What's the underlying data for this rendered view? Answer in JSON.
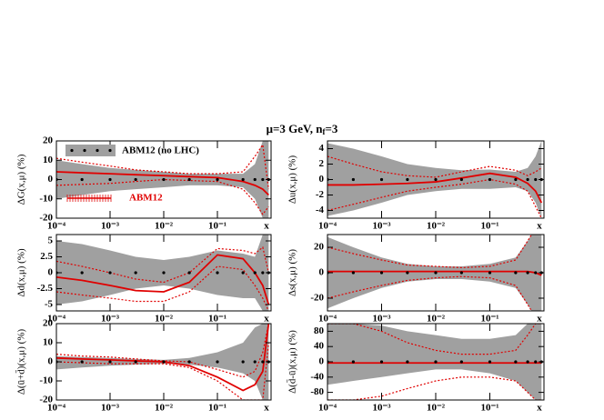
{
  "title": [
    "μ=3 GeV, n",
    "f",
    "=3"
  ],
  "chart_data": [
    {
      "type": "band-line",
      "ylabel": "ΔG(x,μ) (%)",
      "log_x": true,
      "xlabel": "x",
      "x": [
        0.0001,
        0.0003,
        0.001,
        0.003,
        0.01,
        0.03,
        0.1,
        0.3,
        0.5,
        0.7,
        0.9
      ],
      "xlim": [
        0.0001,
        1
      ],
      "xticks": [
        {
          "value": 0.0001,
          "label": "10⁻⁴"
        },
        {
          "value": 0.001,
          "label": "10⁻³"
        },
        {
          "value": 0.01,
          "label": "10⁻²"
        },
        {
          "value": 0.1,
          "label": "10⁻¹"
        }
      ],
      "ylim": [
        -20,
        20
      ],
      "yticks": [
        -20,
        -10,
        0,
        10,
        20
      ],
      "band": {
        "color": "#a0a0a0",
        "lower": [
          -10,
          -8,
          -6,
          -5,
          -4,
          -3,
          -3,
          -4,
          -10,
          -20,
          -20
        ],
        "upper": [
          10,
          8,
          6,
          5,
          4,
          3,
          3,
          3,
          8,
          20,
          20
        ]
      },
      "reference": {
        "color": "#000000",
        "values": [
          0,
          0,
          0,
          0,
          0,
          0,
          0,
          0,
          0,
          0,
          0
        ]
      },
      "red": {
        "color": "#e00000",
        "values": [
          4,
          3.5,
          3,
          2.5,
          2,
          1.5,
          1,
          -1,
          -3,
          -5,
          -8
        ],
        "upper": [
          11,
          9,
          7,
          5,
          4,
          3,
          3,
          4,
          12,
          18,
          -5
        ],
        "lower": [
          -3,
          -2.5,
          -2,
          -1,
          0,
          -0.5,
          -1,
          -5,
          -12,
          -18,
          -14
        ]
      },
      "legend": [
        {
          "name": "ABM12 (no LHC)",
          "color": "#a0a0a0"
        },
        {
          "name": "ABM12",
          "color": "#e00000"
        }
      ]
    },
    {
      "type": "band-line",
      "ylabel": "Δu(x,μ) (%)",
      "log_x": true,
      "xlabel": "x",
      "x": [
        0.0001,
        0.0003,
        0.001,
        0.003,
        0.01,
        0.03,
        0.1,
        0.3,
        0.5,
        0.7,
        0.9
      ],
      "xlim": [
        0.0001,
        1
      ],
      "xticks": [
        {
          "value": 0.0001,
          "label": "10⁻⁴"
        },
        {
          "value": 0.001,
          "label": "10⁻³"
        },
        {
          "value": 0.01,
          "label": "10⁻²"
        },
        {
          "value": 0.1,
          "label": "10⁻¹"
        }
      ],
      "ylim": [
        -5,
        5
      ],
      "yticks": [
        -4,
        -2,
        0,
        2,
        4
      ],
      "band": {
        "color": "#a0a0a0",
        "lower": [
          -4.7,
          -4,
          -3,
          -2,
          -1.5,
          -1.2,
          -1.2,
          -1,
          -1.5,
          -3,
          -5
        ],
        "upper": [
          4.7,
          4,
          3,
          2,
          1.5,
          1.2,
          1.3,
          1,
          1.5,
          3,
          5
        ]
      },
      "reference": {
        "color": "#000000",
        "values": [
          0,
          0,
          0,
          0,
          0,
          0,
          0,
          0,
          0,
          0,
          0
        ]
      },
      "red": {
        "color": "#e00000",
        "values": [
          -0.7,
          -0.7,
          -0.6,
          -0.5,
          -0.3,
          0.2,
          0.8,
          0.3,
          -0.5,
          -1.5,
          -3
        ],
        "upper": [
          3,
          2,
          1,
          0.5,
          0.3,
          1,
          1.7,
          1.2,
          0.5,
          1,
          1.5
        ],
        "lower": [
          -4,
          -3.2,
          -2.3,
          -1.5,
          -1,
          -0.6,
          0,
          -0.6,
          -1.5,
          -3.5,
          -5
        ]
      }
    },
    {
      "type": "band-line",
      "ylabel": "Δd(x,μ) (%)",
      "log_x": true,
      "xlabel": "x",
      "x": [
        0.0001,
        0.0003,
        0.001,
        0.003,
        0.01,
        0.03,
        0.1,
        0.3,
        0.5,
        0.7,
        0.9
      ],
      "xlim": [
        0.0001,
        1
      ],
      "xticks": [
        {
          "value": 0.0001,
          "label": "10⁻⁴"
        },
        {
          "value": 0.001,
          "label": "10⁻³"
        },
        {
          "value": 0.01,
          "label": "10⁻²"
        },
        {
          "value": 0.1,
          "label": "10⁻¹"
        }
      ],
      "ylim": [
        -6,
        6
      ],
      "yticks": [
        -5,
        -2.5,
        0,
        2.5,
        5
      ],
      "band": {
        "color": "#a0a0a0",
        "lower": [
          -5,
          -4.5,
          -3.5,
          -2.5,
          -2,
          -2.5,
          -3.5,
          -4,
          -4,
          -6,
          -6
        ],
        "upper": [
          5,
          4.5,
          3.5,
          2.5,
          2,
          2.5,
          3.5,
          3,
          2.5,
          6,
          6
        ]
      },
      "reference": {
        "color": "#000000",
        "values": [
          0,
          0,
          0,
          0,
          0,
          0,
          0,
          0,
          0,
          0,
          0
        ]
      },
      "red": {
        "color": "#e00000",
        "values": [
          -0.7,
          -1.2,
          -2,
          -2.8,
          -3,
          -1.5,
          2.8,
          2.2,
          0,
          -2,
          -5
        ],
        "upper": [
          1.8,
          1,
          0,
          -1,
          -1.5,
          0,
          3.8,
          3.5,
          3,
          4,
          0
        ],
        "lower": [
          -3,
          -3.5,
          -4,
          -4.5,
          -4.5,
          -3,
          1,
          0.5,
          -2,
          -4,
          -6
        ]
      }
    },
    {
      "type": "band-line",
      "ylabel": "Δs(x,μ) (%)",
      "log_x": true,
      "xlabel": "x",
      "x": [
        0.0001,
        0.0003,
        0.001,
        0.003,
        0.01,
        0.03,
        0.1,
        0.3,
        0.5,
        0.7,
        0.9
      ],
      "xlim": [
        0.0001,
        1
      ],
      "xticks": [
        {
          "value": 0.0001,
          "label": "10⁻⁴"
        },
        {
          "value": 0.001,
          "label": "10⁻³"
        },
        {
          "value": 0.01,
          "label": "10⁻²"
        },
        {
          "value": 0.1,
          "label": "10⁻¹"
        }
      ],
      "ylim": [
        -30,
        30
      ],
      "yticks": [
        -20,
        0,
        20
      ],
      "band": {
        "color": "#a0a0a0",
        "lower": [
          -28,
          -20,
          -12,
          -7,
          -5,
          -5,
          -7,
          -12,
          -25,
          -35,
          -35
        ],
        "upper": [
          28,
          20,
          12,
          7,
          5,
          5,
          7,
          12,
          25,
          35,
          35
        ]
      },
      "reference": {
        "color": "#000000",
        "values": [
          0,
          0,
          0,
          0,
          0,
          0,
          0,
          0,
          0,
          0,
          0
        ]
      },
      "red": {
        "color": "#e00000",
        "values": [
          1,
          1,
          1,
          1,
          1,
          1,
          1,
          1,
          1,
          0,
          -2
        ],
        "upper": [
          20,
          15,
          10,
          6,
          5,
          4,
          5,
          10,
          25,
          35,
          35
        ],
        "lower": [
          -20,
          -15,
          -10,
          -6,
          -4,
          -3,
          -4,
          -10,
          -25,
          -35,
          -35
        ]
      }
    },
    {
      "type": "band-line",
      "ylabel": "Δ(ū+d̄)(x,μ) (%)",
      "log_x": true,
      "xlabel": "x",
      "x": [
        0.0001,
        0.0003,
        0.001,
        0.003,
        0.01,
        0.03,
        0.1,
        0.3,
        0.5,
        0.7,
        0.9
      ],
      "xlim": [
        0.0001,
        1
      ],
      "xticks": [
        {
          "value": 0.0001,
          "label": "10⁻⁴"
        },
        {
          "value": 0.001,
          "label": "10⁻³"
        },
        {
          "value": 0.01,
          "label": "10⁻²"
        },
        {
          "value": 0.1,
          "label": "10⁻¹"
        }
      ],
      "ylim": [
        -20,
        20
      ],
      "yticks": [
        -20,
        -10,
        0,
        10,
        20
      ],
      "band": {
        "color": "#a0a0a0",
        "lower": [
          -4,
          -3,
          -2,
          -1.5,
          -1,
          -1.5,
          -3,
          -6,
          -10,
          -20,
          -20
        ],
        "upper": [
          3,
          2.5,
          2,
          1.5,
          1,
          2,
          5,
          10,
          18,
          20,
          20
        ]
      },
      "reference": {
        "color": "#000000",
        "values": [
          0,
          0,
          0,
          0,
          0,
          0,
          0,
          0,
          0,
          0,
          0
        ]
      },
      "red": {
        "color": "#e00000",
        "values": [
          2,
          1.5,
          1,
          0.5,
          0,
          -2,
          -8,
          -15,
          -12,
          -5,
          20
        ],
        "upper": [
          4,
          3,
          2.5,
          1.5,
          0.5,
          0,
          -4,
          -8,
          -5,
          5,
          20
        ],
        "lower": [
          0,
          -0.5,
          -1,
          -1,
          -1,
          -3,
          -10,
          -20,
          -20,
          -20,
          10
        ]
      }
    },
    {
      "type": "band-line",
      "ylabel": "Δ(d̄-ū)(x,μ) (%)",
      "log_x": true,
      "xlabel": "x",
      "x": [
        0.0001,
        0.0003,
        0.001,
        0.003,
        0.01,
        0.03,
        0.1,
        0.3,
        0.5,
        0.7,
        0.9
      ],
      "xlim": [
        0.0001,
        1
      ],
      "xticks": [
        {
          "value": 0.0001,
          "label": "10⁻⁴"
        },
        {
          "value": 0.001,
          "label": "10⁻³"
        },
        {
          "value": 0.01,
          "label": "10⁻²"
        },
        {
          "value": 0.1,
          "label": "10⁻¹"
        }
      ],
      "ylim": [
        -100,
        100
      ],
      "yticks": [
        -80,
        -40,
        0,
        40,
        80
      ],
      "band": {
        "color": "#a0a0a0",
        "lower": [
          -60,
          -50,
          -40,
          -30,
          -20,
          -20,
          -30,
          -50,
          -80,
          -100,
          -100
        ],
        "upper": [
          100,
          100,
          95,
          80,
          70,
          60,
          60,
          70,
          100,
          100,
          100
        ]
      },
      "reference": {
        "color": "#000000",
        "values": [
          0,
          0,
          0,
          0,
          0,
          0,
          0,
          0,
          0,
          0,
          0
        ]
      },
      "red": {
        "color": "#e00000",
        "values": [
          -3,
          -3,
          -3,
          -3,
          -3,
          -3,
          -3,
          -3,
          -3,
          -3,
          -3
        ],
        "upper": [
          100,
          100,
          80,
          50,
          30,
          20,
          20,
          30,
          70,
          100,
          100
        ],
        "lower": [
          -100,
          -100,
          -90,
          -70,
          -50,
          -40,
          -40,
          -50,
          -80,
          -100,
          -100
        ]
      }
    }
  ]
}
